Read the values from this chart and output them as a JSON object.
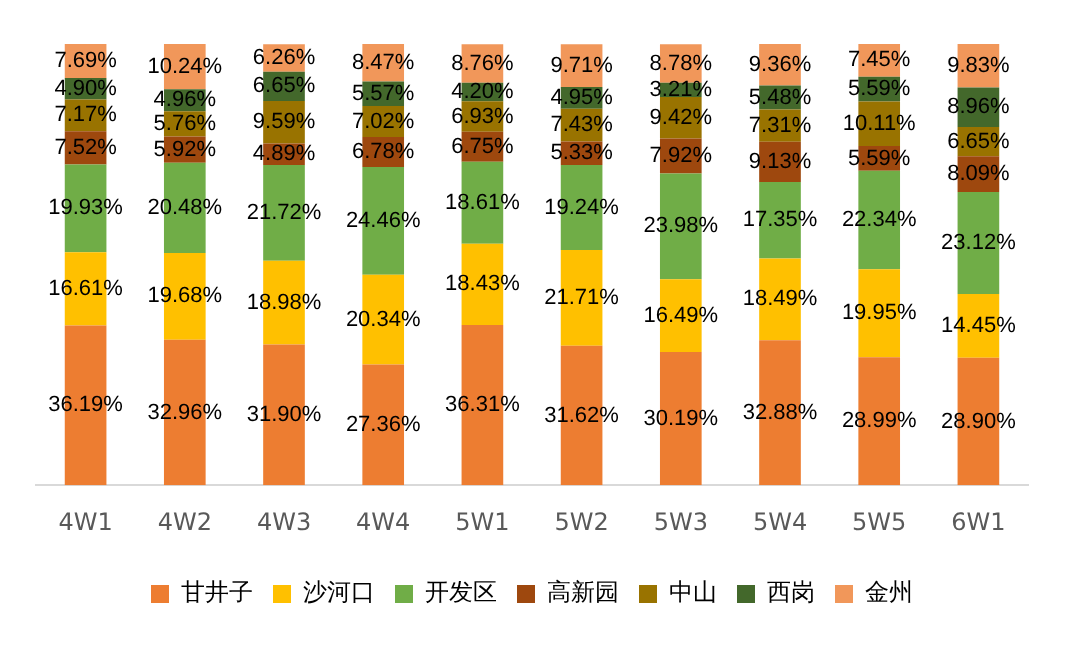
{
  "chart_data": {
    "type": "bar",
    "stacked": true,
    "legend": "bottom",
    "grid": false,
    "categories": [
      "4W1",
      "4W2",
      "4W3",
      "4W4",
      "5W1",
      "5W2",
      "5W3",
      "5W4",
      "5W5",
      "6W1"
    ],
    "series": [
      {
        "name": "甘井子",
        "color": "#ed7d31",
        "values": [
          36.19,
          32.96,
          31.9,
          27.36,
          36.31,
          31.62,
          30.19,
          32.88,
          28.99,
          28.9
        ],
        "value_labels": [
          "36.19%",
          "32.96%",
          "31.90%",
          "27.36%",
          "36.31%",
          "31.62%",
          "30.19%",
          "32.88%",
          "28.99%",
          "28.90%"
        ]
      },
      {
        "name": "沙河口",
        "color": "#ffc000",
        "values": [
          16.61,
          19.68,
          18.98,
          20.34,
          18.43,
          21.71,
          16.49,
          18.49,
          19.95,
          14.45
        ],
        "value_labels": [
          "16.61%",
          "19.68%",
          "18.98%",
          "20.34%",
          "18.43%",
          "21.71%",
          "16.49%",
          "18.49%",
          "19.95%",
          "14.45%"
        ]
      },
      {
        "name": "开发区",
        "color": "#70ad47",
        "values": [
          19.93,
          20.48,
          21.72,
          24.46,
          18.61,
          19.24,
          23.98,
          17.35,
          22.34,
          23.12
        ],
        "value_labels": [
          "19.93%",
          "20.48%",
          "21.72%",
          "24.46%",
          "18.61%",
          "19.24%",
          "23.98%",
          "17.35%",
          "22.34%",
          "23.12%"
        ]
      },
      {
        "name": "高新园",
        "color": "#9e480e",
        "values": [
          7.52,
          5.92,
          4.89,
          6.78,
          6.75,
          5.33,
          7.92,
          9.13,
          5.59,
          8.09
        ],
        "value_labels": [
          "7.52%",
          "5.92%",
          "4.89%",
          "6.78%",
          "6.75%",
          "5.33%",
          "7.92%",
          "9.13%",
          "5.59%",
          "8.09%"
        ]
      },
      {
        "name": "中山",
        "color": "#997300",
        "values": [
          7.17,
          5.76,
          9.59,
          7.02,
          6.93,
          7.43,
          9.42,
          7.31,
          10.11,
          6.65
        ],
        "value_labels": [
          "7.17%",
          "5.76%",
          "9.59%",
          "7.02%",
          "6.93%",
          "7.43%",
          "9.42%",
          "7.31%",
          "10.11%",
          "6.65%"
        ]
      },
      {
        "name": "西岗",
        "color": "#43682b",
        "values": [
          4.9,
          4.96,
          6.65,
          5.57,
          4.2,
          4.95,
          3.21,
          5.48,
          5.59,
          8.96
        ],
        "value_labels": [
          "4.90%",
          "4.96%",
          "6.65%",
          "5.57%",
          "4.20%",
          "4.95%",
          "3.21%",
          "5.48%",
          "5.59%",
          "8.96%"
        ]
      },
      {
        "name": "金州",
        "color": "#f1975a",
        "values": [
          7.69,
          10.24,
          6.26,
          8.47,
          8.76,
          9.71,
          8.78,
          9.36,
          7.45,
          9.83
        ],
        "value_labels": [
          "7.69%",
          "10.24%",
          "6.26%",
          "8.47%",
          "8.76%",
          "9.71%",
          "8.78%",
          "9.36%",
          "7.45%",
          "9.83%"
        ]
      }
    ]
  }
}
